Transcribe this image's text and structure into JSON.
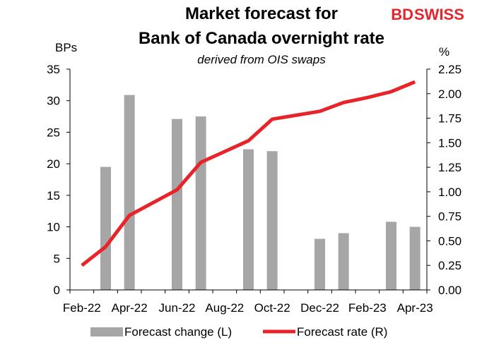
{
  "brand": {
    "part1": "BD",
    "part2": "SWISS",
    "color": "#e8242a"
  },
  "chart_data": {
    "type": "bar+line",
    "title_line1": "Market forecast for",
    "title_line2": "Bank of Canada overnight rate",
    "subtitle": "derived from OIS swaps",
    "y_left_label": "BPs",
    "y_right_label": "%",
    "y_left_lim": [
      0,
      35
    ],
    "y_left_ticks": [
      "0",
      "5",
      "10",
      "15",
      "20",
      "25",
      "30",
      "35"
    ],
    "y_right_lim": [
      0,
      2.25
    ],
    "y_right_ticks": [
      "0.00",
      "0.25",
      "0.50",
      "0.75",
      "1.00",
      "1.25",
      "1.50",
      "1.75",
      "2.00",
      "2.25"
    ],
    "x_tick_labels": [
      "Feb-22",
      "Apr-22",
      "Jun-22",
      "Aug-22",
      "Oct-22",
      "Dec-22",
      "Feb-23",
      "Apr-23"
    ],
    "x_points": [
      "Feb-22",
      "Mar-22",
      "Apr-22",
      "May-22",
      "Jun-22",
      "Jul-22",
      "Aug-22",
      "Sep-22",
      "Oct-22",
      "Nov-22",
      "Dec-22",
      "Jan-23",
      "Feb-23",
      "Mar-23",
      "Apr-23"
    ],
    "series": [
      {
        "name": "Forecast change (L)",
        "kind": "bar",
        "axis": "left",
        "color": "#a6a6a6",
        "values": [
          null,
          19.5,
          30.9,
          null,
          27.1,
          27.5,
          null,
          22.3,
          22.0,
          null,
          8.1,
          9.0,
          null,
          10.8,
          10.0
        ]
      },
      {
        "name": "Forecast rate (R)",
        "kind": "line",
        "axis": "right",
        "color": "#e8242a",
        "values": [
          0.25,
          0.44,
          0.76,
          0.89,
          1.02,
          1.3,
          1.41,
          1.52,
          1.74,
          1.78,
          1.82,
          1.91,
          1.96,
          2.02,
          2.12
        ]
      }
    ],
    "legend_position": "bottom"
  }
}
